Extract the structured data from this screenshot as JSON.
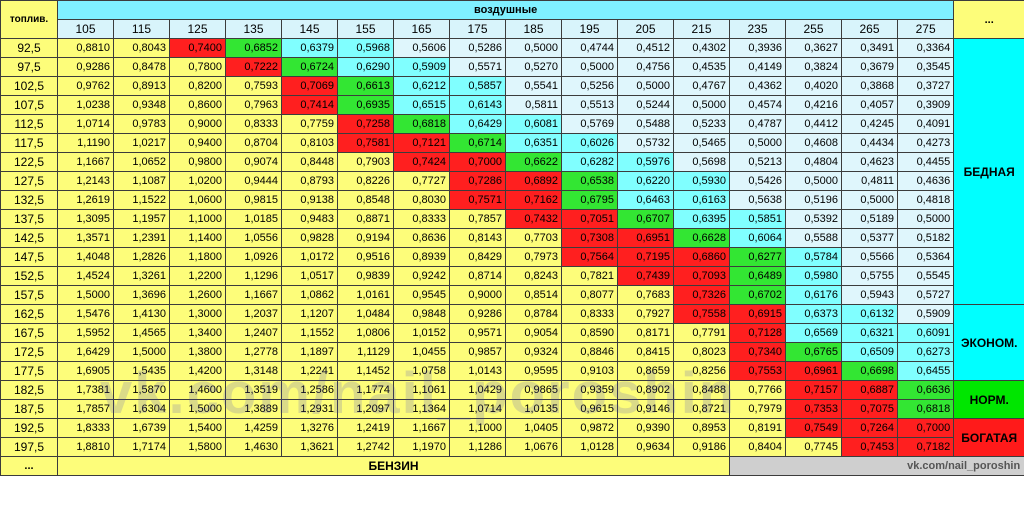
{
  "header": {
    "corner_label": "топлив.",
    "air_label": "воздушные",
    "more_label": "...",
    "air_values": [
      "105",
      "115",
      "125",
      "135",
      "145",
      "155",
      "165",
      "175",
      "185",
      "195",
      "205",
      "215",
      "235",
      "255",
      "265",
      "275"
    ]
  },
  "rows": [
    {
      "fuel": "92,5",
      "vals": [
        "0,8810",
        "0,8043",
        "0,7400",
        "0,6852",
        "0,6379",
        "0,5968",
        "0,5606",
        "0,5286",
        "0,5000",
        "0,4744",
        "0,4512",
        "0,4302",
        "0,3936",
        "0,3627",
        "0,3491",
        "0,3364"
      ],
      "colors": "yyrgcclbllllllll"
    },
    {
      "fuel": "97,5",
      "vals": [
        "0,9286",
        "0,8478",
        "0,7800",
        "0,7222",
        "0,6724",
        "0,6290",
        "0,5909",
        "0,5571",
        "0,5270",
        "0,5000",
        "0,4756",
        "0,4535",
        "0,4149",
        "0,3824",
        "0,3679",
        "0,3545"
      ],
      "colors": "yyyrgcclbllllllll"
    },
    {
      "fuel": "102,5",
      "vals": [
        "0,9762",
        "0,8913",
        "0,8200",
        "0,7593",
        "0,7069",
        "0,6613",
        "0,6212",
        "0,5857",
        "0,5541",
        "0,5256",
        "0,5000",
        "0,4767",
        "0,4362",
        "0,4020",
        "0,3868",
        "0,3727"
      ],
      "colors": "yyyyrgcclblllllll"
    },
    {
      "fuel": "107,5",
      "vals": [
        "1,0238",
        "0,9348",
        "0,8600",
        "0,7963",
        "0,7414",
        "0,6935",
        "0,6515",
        "0,6143",
        "0,5811",
        "0,5513",
        "0,5244",
        "0,5000",
        "0,4574",
        "0,4216",
        "0,4057",
        "0,3909"
      ],
      "colors": "yyyyrgcclblllllll"
    },
    {
      "fuel": "112,5",
      "vals": [
        "1,0714",
        "0,9783",
        "0,9000",
        "0,8333",
        "0,7759",
        "0,7258",
        "0,6818",
        "0,6429",
        "0,6081",
        "0,5769",
        "0,5488",
        "0,5233",
        "0,4787",
        "0,4412",
        "0,4245",
        "0,4091"
      ],
      "colors": "yyyyyrgcclbllllll"
    },
    {
      "fuel": "117,5",
      "vals": [
        "1,1190",
        "1,0217",
        "0,9400",
        "0,8704",
        "0,8103",
        "0,7581",
        "0,7121",
        "0,6714",
        "0,6351",
        "0,6026",
        "0,5732",
        "0,5465",
        "0,5000",
        "0,4608",
        "0,4434",
        "0,4273"
      ],
      "colors": "yyyyyrrgcclblllll"
    },
    {
      "fuel": "122,5",
      "vals": [
        "1,1667",
        "1,0652",
        "0,9800",
        "0,9074",
        "0,8448",
        "0,7903",
        "0,7424",
        "0,7000",
        "0,6622",
        "0,6282",
        "0,5976",
        "0,5698",
        "0,5213",
        "0,4804",
        "0,4623",
        "0,4455"
      ],
      "colors": "yyyyyyrrgcclbllll"
    },
    {
      "fuel": "127,5",
      "vals": [
        "1,2143",
        "1,1087",
        "1,0200",
        "0,9444",
        "0,8793",
        "0,8226",
        "0,7727",
        "0,7286",
        "0,6892",
        "0,6538",
        "0,6220",
        "0,5930",
        "0,5426",
        "0,5000",
        "0,4811",
        "0,4636"
      ],
      "colors": "yyyyyyyrrgccllll"
    },
    {
      "fuel": "132,5",
      "vals": [
        "1,2619",
        "1,1522",
        "1,0600",
        "0,9815",
        "0,9138",
        "0,8548",
        "0,8030",
        "0,7571",
        "0,7162",
        "0,6795",
        "0,6463",
        "0,6163",
        "0,5638",
        "0,5196",
        "0,5000",
        "0,4818"
      ],
      "colors": "yyyyyyyrrgccllll"
    },
    {
      "fuel": "137,5",
      "vals": [
        "1,3095",
        "1,1957",
        "1,1000",
        "1,0185",
        "0,9483",
        "0,8871",
        "0,8333",
        "0,7857",
        "0,7432",
        "0,7051",
        "0,6707",
        "0,6395",
        "0,5851",
        "0,5392",
        "0,5189",
        "0,5000"
      ],
      "colors": "yyyyyyyyrrgccllll"
    },
    {
      "fuel": "142,5",
      "vals": [
        "1,3571",
        "1,2391",
        "1,1400",
        "1,0556",
        "0,9828",
        "0,9194",
        "0,8636",
        "0,8143",
        "0,7703",
        "0,7308",
        "0,6951",
        "0,6628",
        "0,6064",
        "0,5588",
        "0,5377",
        "0,5182"
      ],
      "colors": "yyyyyyyyyrrgclll"
    },
    {
      "fuel": "147,5",
      "vals": [
        "1,4048",
        "1,2826",
        "1,1800",
        "1,0926",
        "1,0172",
        "0,9516",
        "0,8939",
        "0,8429",
        "0,7973",
        "0,7564",
        "0,7195",
        "0,6860",
        "0,6277",
        "0,5784",
        "0,5566",
        "0,5364"
      ],
      "colors": "yyyyyyyyyrrrgclll"
    },
    {
      "fuel": "152,5",
      "vals": [
        "1,4524",
        "1,3261",
        "1,2200",
        "1,1296",
        "1,0517",
        "0,9839",
        "0,9242",
        "0,8714",
        "0,8243",
        "0,7821",
        "0,7439",
        "0,7093",
        "0,6489",
        "0,5980",
        "0,5755",
        "0,5545"
      ],
      "colors": "yyyyyyyyyyrrgclll"
    },
    {
      "fuel": "157,5",
      "vals": [
        "1,5000",
        "1,3696",
        "1,2600",
        "1,1667",
        "1,0862",
        "1,0161",
        "0,9545",
        "0,9000",
        "0,8514",
        "0,8077",
        "0,7683",
        "0,7326",
        "0,6702",
        "0,6176",
        "0,5943",
        "0,5727"
      ],
      "colors": "yyyyyyyyyyyrgcll"
    },
    {
      "fuel": "162,5",
      "vals": [
        "1,5476",
        "1,4130",
        "1,3000",
        "1,2037",
        "1,1207",
        "1,0484",
        "0,9848",
        "0,9286",
        "0,8784",
        "0,8333",
        "0,7927",
        "0,7558",
        "0,6915",
        "0,6373",
        "0,6132",
        "0,5909"
      ],
      "colors": "yyyyyyyyyyyrrccl"
    },
    {
      "fuel": "167,5",
      "vals": [
        "1,5952",
        "1,4565",
        "1,3400",
        "1,2407",
        "1,1552",
        "1,0806",
        "1,0152",
        "0,9571",
        "0,9054",
        "0,8590",
        "0,8171",
        "0,7791",
        "0,7128",
        "0,6569",
        "0,6321",
        "0,6091"
      ],
      "colors": "yyyyyyyyyyyyrccc"
    },
    {
      "fuel": "172,5",
      "vals": [
        "1,6429",
        "1,5000",
        "1,3800",
        "1,2778",
        "1,1897",
        "1,1129",
        "1,0455",
        "0,9857",
        "0,9324",
        "0,8846",
        "0,8415",
        "0,8023",
        "0,7340",
        "0,6765",
        "0,6509",
        "0,6273"
      ],
      "colors": "yyyyyyyyyyyyrgcc"
    },
    {
      "fuel": "177,5",
      "vals": [
        "1,6905",
        "1,5435",
        "1,4200",
        "1,3148",
        "1,2241",
        "1,1452",
        "1,0758",
        "1,0143",
        "0,9595",
        "0,9103",
        "0,8659",
        "0,8256",
        "0,7553",
        "0,6961",
        "0,6698",
        "0,6455"
      ],
      "colors": "yyyyyyyyyyyyrrgc"
    },
    {
      "fuel": "182,5",
      "vals": [
        "1,7381",
        "1,5870",
        "1,4600",
        "1,3519",
        "1,2586",
        "1,1774",
        "1,1061",
        "1,0429",
        "0,9865",
        "0,9359",
        "0,8902",
        "0,8488",
        "0,7766",
        "0,7157",
        "0,6887",
        "0,6636"
      ],
      "colors": "yyyyyyyyyyyyyrrg"
    },
    {
      "fuel": "187,5",
      "vals": [
        "1,7857",
        "1,6304",
        "1,5000",
        "1,3889",
        "1,2931",
        "1,2097",
        "1,1364",
        "1,0714",
        "1,0135",
        "0,9615",
        "0,9146",
        "0,8721",
        "0,7979",
        "0,7353",
        "0,7075",
        "0,6818"
      ],
      "colors": "yyyyyyyyyyyyyrrg"
    },
    {
      "fuel": "192,5",
      "vals": [
        "1,8333",
        "1,6739",
        "1,5400",
        "1,4259",
        "1,3276",
        "1,2419",
        "1,1667",
        "1,1000",
        "1,0405",
        "0,9872",
        "0,9390",
        "0,8953",
        "0,8191",
        "0,7549",
        "0,7264",
        "0,7000"
      ],
      "colors": "yyyyyyyyyyyyyrrr"
    },
    {
      "fuel": "197,5",
      "vals": [
        "1,8810",
        "1,7174",
        "1,5800",
        "1,4630",
        "1,3621",
        "1,2742",
        "1,1970",
        "1,1286",
        "1,0676",
        "1,0128",
        "0,9634",
        "0,9186",
        "0,8404",
        "0,7745",
        "0,7453",
        "0,7182"
      ],
      "colors": "yyyyyyyyyyyyyyrr"
    }
  ],
  "zones": {
    "lean": "БЕДНАЯ",
    "econ": "ЭКОНОМ.",
    "norm": "НОРМ.",
    "rich": "БОГАТАЯ"
  },
  "footer": {
    "dots": "...",
    "benzin_label": "БЕНЗИН",
    "credit": "vk.com/nail_poroshin"
  },
  "watermark": "vk.com/nail_poroshin",
  "palette": {
    "yellow": "#fdfd7a",
    "cyan": "#80ffff",
    "light_blue": "#dff6fc",
    "green": "#33e633",
    "red": "#ff1f1f"
  }
}
